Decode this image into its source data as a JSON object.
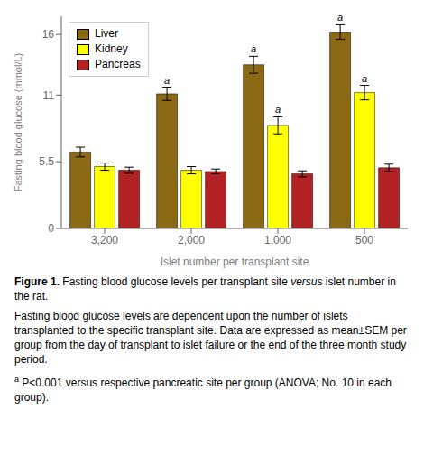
{
  "chart_data": {
    "type": "bar",
    "categories": [
      "3,200",
      "2,000",
      "1,000",
      "500"
    ],
    "series": [
      {
        "name": "Liver",
        "color": "#8B6914",
        "values": [
          6.3,
          11.1,
          13.5,
          16.2
        ],
        "errors": [
          0.4,
          0.55,
          0.7,
          0.6
        ],
        "sig_labels": [
          null,
          "a",
          "a",
          "a"
        ]
      },
      {
        "name": "Kidney",
        "color": "#FFFF00",
        "values": [
          5.1,
          4.8,
          8.5,
          11.2
        ],
        "errors": [
          0.3,
          0.3,
          0.7,
          0.6
        ],
        "sig_labels": [
          null,
          null,
          "a",
          "a"
        ]
      },
      {
        "name": "Pancreas",
        "color": "#B22222",
        "values": [
          4.8,
          4.7,
          4.5,
          5.0
        ],
        "errors": [
          0.25,
          0.2,
          0.25,
          0.3
        ]
      }
    ],
    "xlabel": "Islet number per transplant site",
    "ylabel": "Fasting blood glucose (mmol/L)",
    "ylim": [
      0,
      17.5
    ],
    "yticks": [
      0,
      5.5,
      11,
      16
    ],
    "grid": false,
    "legend": "upper left",
    "annotations": [
      [
        {
          "text": "Figure 1.",
          "style": "bold"
        },
        {
          "text": " Fasting blood glucose levels per transplant site ",
          "style": "normal"
        },
        {
          "text": "versus",
          "style": "italic"
        },
        {
          "text": " islet number in the rat.",
          "style": "normal"
        }
      ],
      [
        {
          "text": "Fasting blood glucose levels are dependent upon the number of islets transplanted to the specific transplant site. Data are expressed as mean±SEM per group from the day of transplant to islet failure or the end of the three month study period.",
          "style": "normal"
        }
      ],
      [
        {
          "text": "a",
          "style": "superscript"
        },
        {
          "text": " P<0.001 versus respective pancreatic site per group (ANOVA; No. 10 in each group).",
          "style": "normal"
        }
      ]
    ]
  }
}
